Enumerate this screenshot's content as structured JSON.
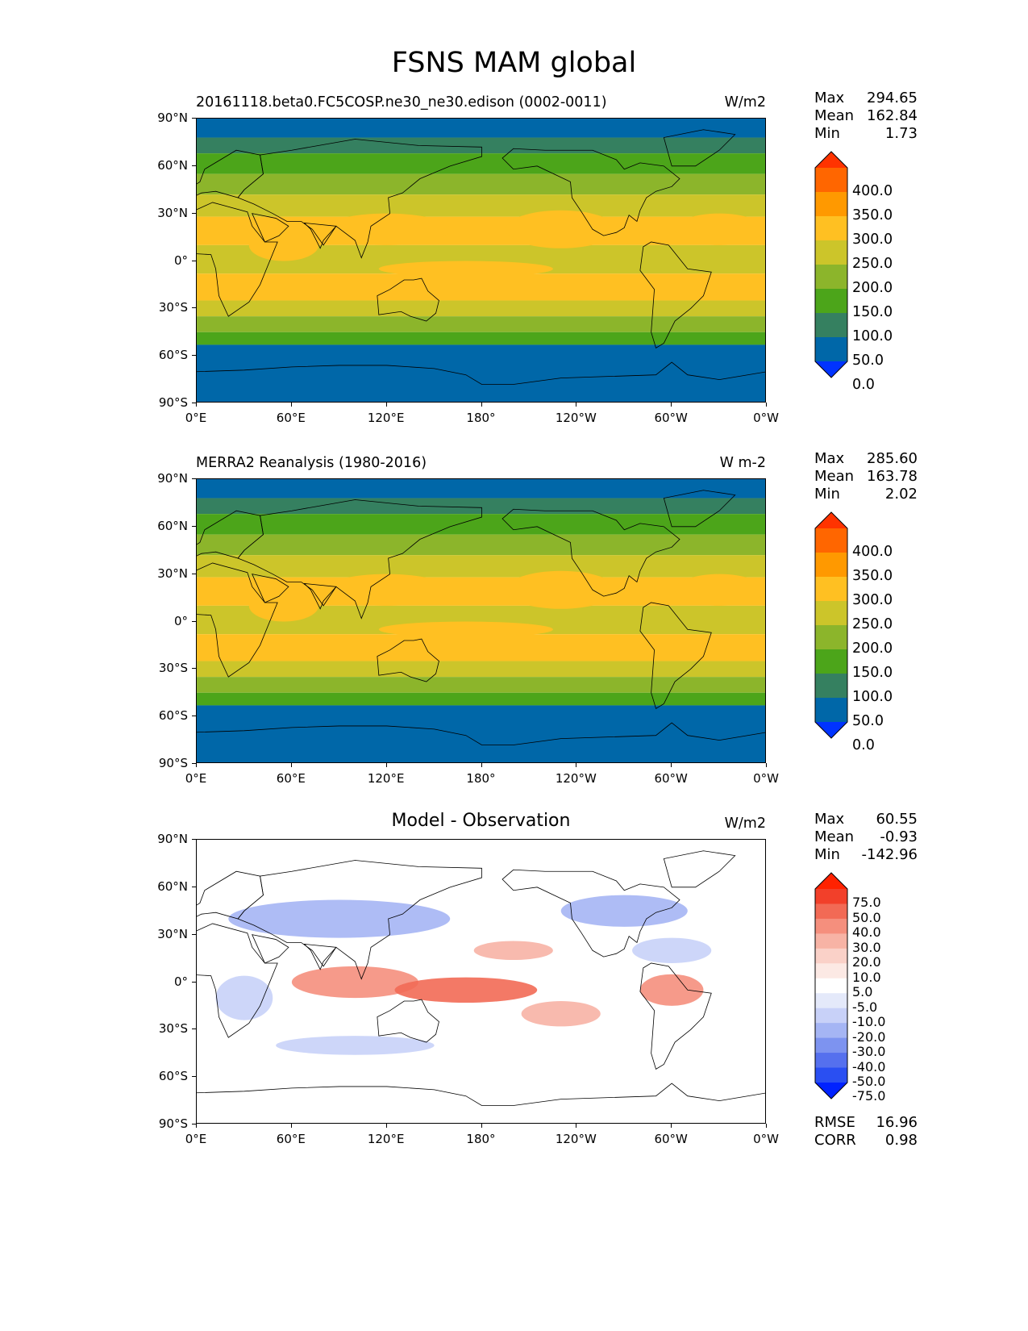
{
  "figure": {
    "title": "FSNS MAM global",
    "x_ticks": [
      "0°E",
      "60°E",
      "120°E",
      "180°",
      "120°W",
      "60°W",
      "0°W"
    ],
    "y_ticks": [
      "90°N",
      "60°N",
      "30°N",
      "0°",
      "30°S",
      "60°S",
      "90°S"
    ]
  },
  "panels": [
    {
      "title": "20161118.beta0.FC5COSP.ne30_ne30.edison (0002-0011)",
      "units": "W/m2",
      "stats": [
        {
          "label": "Max",
          "value": "294.65"
        },
        {
          "label": "Mean",
          "value": "162.84"
        },
        {
          "label": "Min",
          "value": "1.73"
        }
      ],
      "colorbar": {
        "labels": [
          "400.0",
          "350.0",
          "300.0",
          "250.0",
          "200.0",
          "150.0",
          "100.0",
          "50.0",
          "0.0"
        ],
        "colors": [
          "#FF3300",
          "#FF6600",
          "#FF9900",
          "#FFC022",
          "#CCC52A",
          "#8CB52B",
          "#4CA51A",
          "#358060",
          "#0067A8",
          "#0033FF"
        ]
      }
    },
    {
      "title": "MERRA2 Reanalysis (1980-2016)",
      "units": "W m-2",
      "stats": [
        {
          "label": "Max",
          "value": "285.60"
        },
        {
          "label": "Mean",
          "value": "163.78"
        },
        {
          "label": "Min",
          "value": "2.02"
        }
      ],
      "colorbar": {
        "labels": [
          "400.0",
          "350.0",
          "300.0",
          "250.0",
          "200.0",
          "150.0",
          "100.0",
          "50.0",
          "0.0"
        ],
        "colors": [
          "#FF3300",
          "#FF6600",
          "#FF9900",
          "#FFC022",
          "#CCC52A",
          "#8CB52B",
          "#4CA51A",
          "#358060",
          "#0067A8",
          "#0033FF"
        ]
      }
    },
    {
      "title": "Model - Observation",
      "units": "W/m2",
      "stats": [
        {
          "label": "Max",
          "value": "60.55"
        },
        {
          "label": "Mean",
          "value": "-0.93"
        },
        {
          "label": "Min",
          "value": "-142.96"
        }
      ],
      "extra_stats": [
        {
          "label": "RMSE",
          "value": "16.96"
        },
        {
          "label": "CORR",
          "value": "0.98"
        }
      ],
      "colorbar": {
        "labels": [
          "75.0",
          "50.0",
          "40.0",
          "30.0",
          "20.0",
          "10.0",
          "5.0",
          "-5.0",
          "-10.0",
          "-20.0",
          "-30.0",
          "-40.0",
          "-50.0",
          "-75.0"
        ],
        "colors": [
          "#FF2200",
          "#F2402A",
          "#F26A55",
          "#F58F7D",
          "#F7B3A5",
          "#FAD1C8",
          "#FCE9E4",
          "#FFFFFF",
          "#E4E9FA",
          "#C8D1F8",
          "#A5B5F4",
          "#7D93F0",
          "#5570EE",
          "#2A4FF2",
          "#0022FF"
        ]
      }
    }
  ]
}
